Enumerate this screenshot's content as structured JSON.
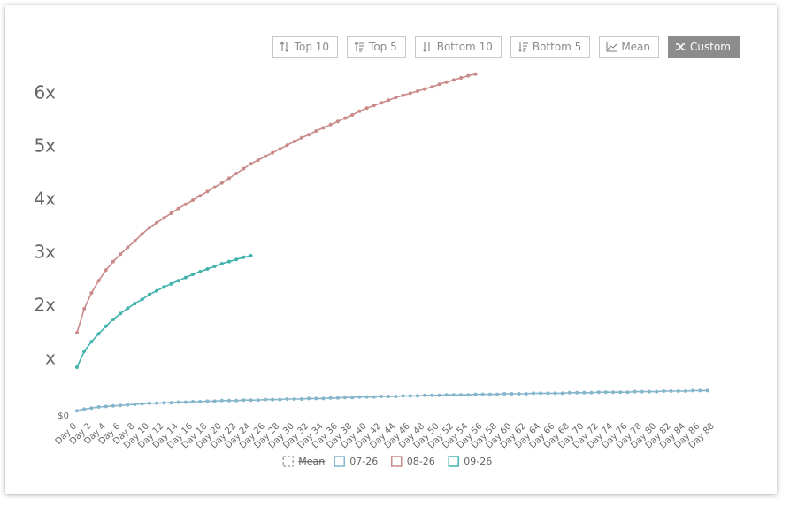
{
  "toolbar": {
    "buttons": [
      "Top 10",
      "Top 5",
      "Bottom 10",
      "Bottom 5",
      "Mean",
      "Custom"
    ],
    "active": 5
  },
  "chart_data": {
    "type": "line",
    "categories": [
      "Day 0",
      null,
      "Day 2",
      null,
      "Day 4",
      null,
      "Day 6",
      null,
      "Day 8",
      null,
      "Day 10",
      null,
      "Day 12",
      null,
      "Day 14",
      null,
      "Day 16",
      null,
      "Day 18",
      null,
      "Day 20",
      null,
      "Day 22",
      null,
      "Day 24",
      null,
      "Day 26",
      null,
      "Day 28",
      null,
      "Day 30",
      null,
      "Day 32",
      null,
      "Day 34",
      null,
      "Day 36",
      null,
      "Day 38",
      null,
      "Day 40",
      null,
      "Day 42",
      null,
      "Day 44",
      null,
      "Day 46",
      null,
      "Day 48",
      null,
      "Day 50",
      null,
      "Day 52",
      null,
      "Day 54",
      null,
      "Day 56",
      null,
      "Day 58",
      null,
      "Day 60",
      null,
      "Day 62",
      null,
      "Day 64",
      null,
      "Day 66",
      null,
      "Day 68",
      null,
      "Day 70",
      null,
      "Day 72",
      null,
      "Day 74",
      null,
      "Day 76",
      null,
      "Day 78",
      null,
      "Day 80",
      null,
      "Day 82",
      null,
      "Day 84",
      null,
      "Day 86",
      null,
      "Day 88"
    ],
    "series": [
      {
        "name": "07-26",
        "color": "#86b6cc",
        "values": [
          0.03,
          0.06,
          0.08,
          0.1,
          0.11,
          0.12,
          0.13,
          0.14,
          0.15,
          0.16,
          0.17,
          0.17,
          0.18,
          0.18,
          0.19,
          0.19,
          0.2,
          0.2,
          0.21,
          0.21,
          0.22,
          0.22,
          0.22,
          0.23,
          0.23,
          0.23,
          0.24,
          0.24,
          0.24,
          0.25,
          0.25,
          0.25,
          0.26,
          0.26,
          0.26,
          0.27,
          0.27,
          0.28,
          0.28,
          0.29,
          0.29,
          0.29,
          0.3,
          0.3,
          0.3,
          0.31,
          0.31,
          0.31,
          0.32,
          0.32,
          0.32,
          0.33,
          0.33,
          0.33,
          0.33,
          0.34,
          0.34,
          0.34,
          0.34,
          0.35,
          0.35,
          0.35,
          0.35,
          0.36,
          0.36,
          0.36,
          0.36,
          0.36,
          0.37,
          0.37,
          0.37,
          0.37,
          0.38,
          0.38,
          0.38,
          0.38,
          0.38,
          0.39,
          0.39,
          0.39,
          0.39,
          0.4,
          0.4,
          0.4,
          0.4,
          0.41,
          0.41,
          0.41,
          null
        ]
      },
      {
        "name": "08-26",
        "color": "#c98a8a",
        "values": [
          1.5,
          1.95,
          2.25,
          2.48,
          2.68,
          2.84,
          2.98,
          3.11,
          3.23,
          3.36,
          3.48,
          3.57,
          3.66,
          3.75,
          3.84,
          3.92,
          4.0,
          4.08,
          4.16,
          4.24,
          4.32,
          4.41,
          4.5,
          4.59,
          4.68,
          4.75,
          4.82,
          4.89,
          4.96,
          5.03,
          5.1,
          5.17,
          5.23,
          5.3,
          5.36,
          5.42,
          5.48,
          5.54,
          5.6,
          5.67,
          5.73,
          5.78,
          5.83,
          5.88,
          5.93,
          5.97,
          6.01,
          6.05,
          6.09,
          6.13,
          6.18,
          6.22,
          6.26,
          6.3,
          6.34,
          6.37,
          null,
          null,
          null,
          null,
          null,
          null,
          null,
          null,
          null,
          null,
          null,
          null,
          null,
          null,
          null,
          null,
          null,
          null,
          null,
          null,
          null,
          null,
          null,
          null,
          null,
          null,
          null,
          null,
          null,
          null,
          null,
          null,
          null
        ]
      },
      {
        "name": "09-26",
        "color": "#3fb3ac",
        "values": [
          0.85,
          1.15,
          1.33,
          1.48,
          1.62,
          1.75,
          1.86,
          1.96,
          2.05,
          2.13,
          2.22,
          2.29,
          2.36,
          2.42,
          2.48,
          2.54,
          2.6,
          2.65,
          2.7,
          2.75,
          2.8,
          2.84,
          2.88,
          2.92,
          2.95,
          null,
          null,
          null,
          null,
          null,
          null,
          null,
          null,
          null,
          null,
          null,
          null,
          null,
          null,
          null,
          null,
          null,
          null,
          null,
          null,
          null,
          null,
          null,
          null,
          null,
          null,
          null,
          null,
          null,
          null,
          null,
          null,
          null,
          null,
          null,
          null,
          null,
          null,
          null,
          null,
          null,
          null,
          null,
          null,
          null,
          null,
          null,
          null,
          null,
          null,
          null,
          null,
          null,
          null,
          null,
          null,
          null,
          null,
          null,
          null,
          null,
          null,
          null,
          null
        ]
      }
    ],
    "hidden_series": [
      {
        "name": "Mean",
        "color": "#aaaaaa"
      }
    ],
    "ylim": [
      0,
      6.4
    ],
    "yticks": [
      {
        "value": 0,
        "label": "$0"
      },
      {
        "value": 1,
        "label": "x"
      },
      {
        "value": 2,
        "label": "2x"
      },
      {
        "value": 3,
        "label": "3x"
      },
      {
        "value": 4,
        "label": "4x"
      },
      {
        "value": 5,
        "label": "5x"
      },
      {
        "value": 6,
        "label": "6x"
      }
    ],
    "grid": false
  }
}
